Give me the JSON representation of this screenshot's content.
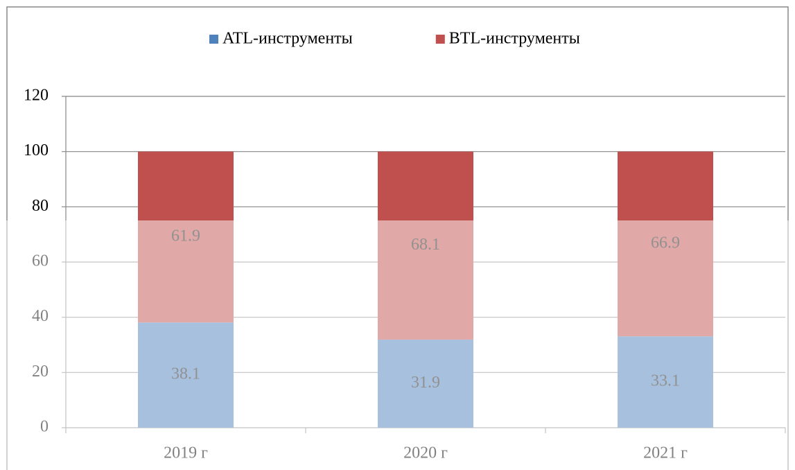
{
  "chart_data": {
    "type": "bar",
    "stacked": true,
    "categories": [
      "2019 г",
      "2020 г",
      "2021 г"
    ],
    "series": [
      {
        "name": "ATL-инструменты",
        "color": "#4f81bd",
        "values": [
          38.1,
          31.9,
          33.1
        ]
      },
      {
        "name": "BTL-инструменты",
        "color": "#c0504d",
        "values": [
          61.9,
          68.1,
          66.9
        ]
      }
    ],
    "ylim": [
      0,
      120
    ],
    "yticks": [
      0,
      20,
      40,
      60,
      80,
      100,
      120
    ],
    "grid": true,
    "legend": "top"
  }
}
